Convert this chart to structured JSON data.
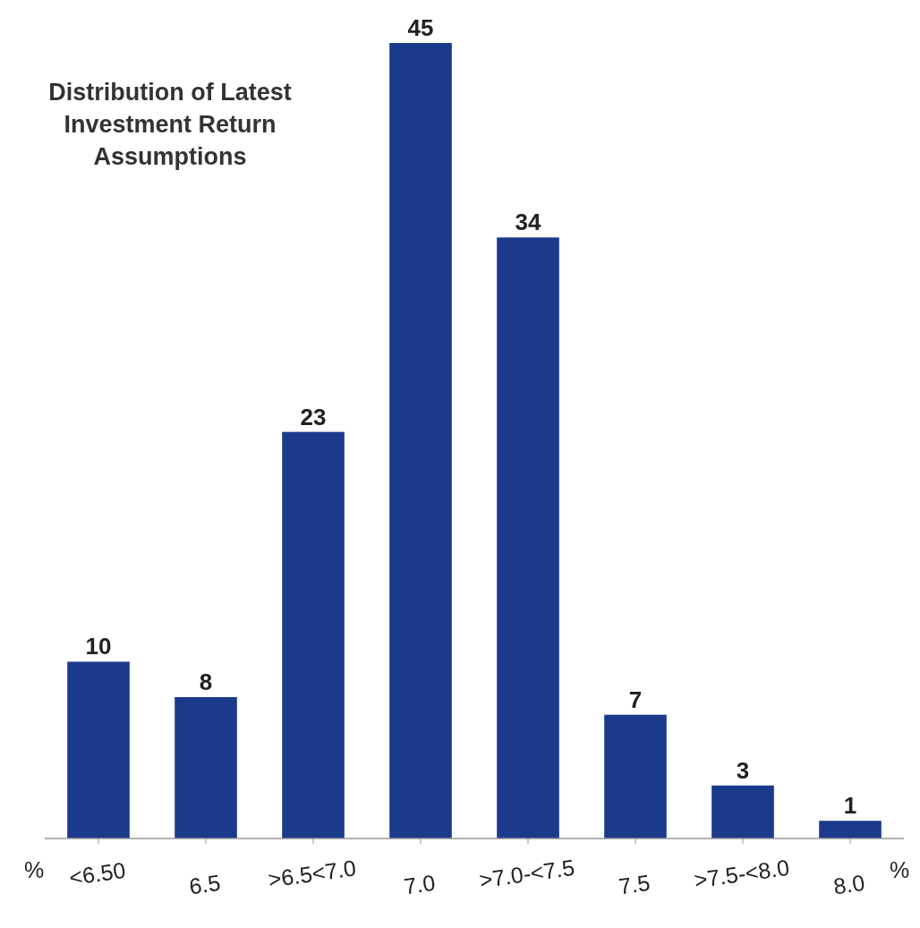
{
  "chart_data": {
    "type": "bar",
    "title": "Distribution of Latest Investment Return Assumptions",
    "categories": [
      "<6.50",
      "6.5",
      ">6.5<7.0",
      "7.0",
      ">7.0-<7.5",
      "7.5",
      ">7.5-<8.0",
      "8.0"
    ],
    "values": [
      10,
      8,
      23,
      45,
      34,
      7,
      3,
      1
    ],
    "color": "#1b3a8c",
    "data_labels": true,
    "annotations": [
      "%",
      "%"
    ]
  }
}
